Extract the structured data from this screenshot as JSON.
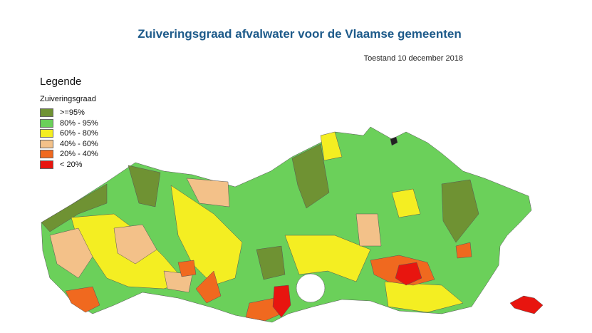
{
  "title": "Zuiveringsgraad afvalwater voor de Vlaamse gemeenten",
  "subtitle": "Toestand 10 december 2018",
  "legend": {
    "heading": "Legende",
    "variable": "Zuiveringsgraad",
    "items": [
      {
        "label": ">=95%",
        "color": "#6f9233"
      },
      {
        "label": "80% - 95%",
        "color": "#6bd05a"
      },
      {
        "label": "60% - 80%",
        "color": "#f4ee22"
      },
      {
        "label": "40% - 60%",
        "color": "#f3c189"
      },
      {
        "label": "20% - 40%",
        "color": "#f0691f"
      },
      {
        "label": "< 20%",
        "color": "#e8150f"
      }
    ]
  }
}
